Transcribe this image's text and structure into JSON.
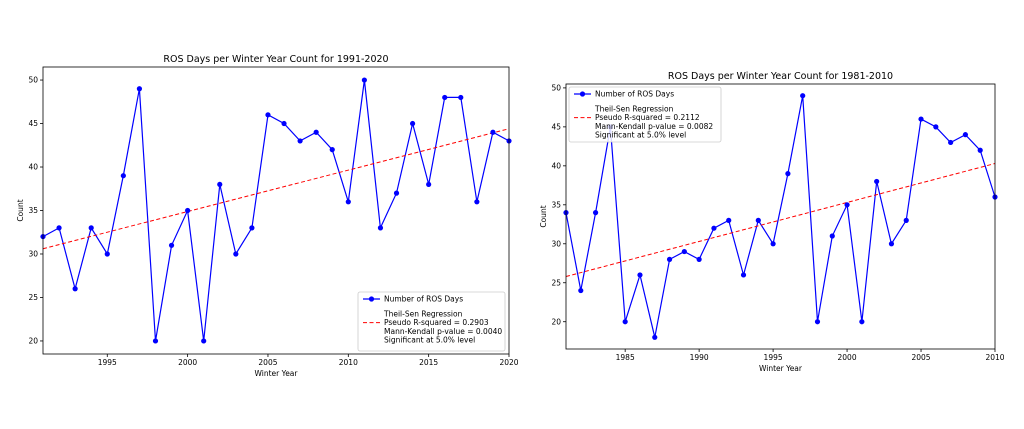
{
  "chart_data": [
    {
      "type": "line",
      "title": "ROS Days per Winter Year Count for 1991-2020",
      "xlabel": "Winter Year",
      "ylabel": "Count",
      "xlim": [
        1991,
        2020
      ],
      "ylim": [
        18.5,
        51.5
      ],
      "xticks": [
        1995,
        2000,
        2005,
        2010,
        2015,
        2020
      ],
      "yticks": [
        20,
        25,
        30,
        35,
        40,
        45,
        50
      ],
      "grid": false,
      "legend_position": "lower-right",
      "series": [
        {
          "name": "Number of ROS Days",
          "color": "#0000ff",
          "marker": "circle",
          "x": [
            1991,
            1992,
            1993,
            1994,
            1995,
            1996,
            1997,
            1998,
            1999,
            2000,
            2001,
            2002,
            2003,
            2004,
            2005,
            2006,
            2007,
            2008,
            2009,
            2010,
            2011,
            2012,
            2013,
            2014,
            2015,
            2016,
            2017,
            2018,
            2019,
            2020
          ],
          "y": [
            32,
            33,
            26,
            33,
            30,
            39,
            49,
            20,
            31,
            35,
            20,
            38,
            30,
            33,
            46,
            45,
            43,
            44,
            42,
            36,
            50,
            33,
            37,
            45,
            38,
            48,
            48,
            36,
            44,
            43
          ]
        }
      ],
      "trend": {
        "name": "Theil-Sen Regression",
        "color": "#ff0000",
        "style": "dashed",
        "x": [
          1991,
          2020
        ],
        "y": [
          30.6,
          44.4
        ]
      },
      "legend": {
        "series_label": "Number of ROS Days",
        "trend_header": "Theil-Sen Regression",
        "trend_label": "Pseudo R-squared = 0.2903",
        "pvalue_text": "Mann-Kendall p-value = 0.0040",
        "significance_text": "Significant at 5.0% level"
      }
    },
    {
      "type": "line",
      "title": "ROS Days per Winter Year Count for 1981-2010",
      "xlabel": "Winter Year",
      "ylabel": "Count",
      "xlim": [
        1981,
        2010
      ],
      "ylim": [
        16.5,
        50.5
      ],
      "xticks": [
        1985,
        1990,
        1995,
        2000,
        2005,
        2010
      ],
      "yticks": [
        20,
        25,
        30,
        35,
        40,
        45,
        50
      ],
      "grid": false,
      "legend_position": "upper-left",
      "series": [
        {
          "name": "Number of ROS Days",
          "color": "#0000ff",
          "marker": "circle",
          "x": [
            1981,
            1982,
            1983,
            1984,
            1985,
            1986,
            1987,
            1988,
            1989,
            1990,
            1991,
            1992,
            1993,
            1994,
            1995,
            1996,
            1997,
            1998,
            1999,
            2000,
            2001,
            2002,
            2003,
            2004,
            2005,
            2006,
            2007,
            2008,
            2009,
            2010
          ],
          "y": [
            34,
            24,
            34,
            45,
            20,
            26,
            18,
            28,
            29,
            28,
            32,
            33,
            26,
            33,
            30,
            39,
            49,
            20,
            31,
            35,
            20,
            38,
            30,
            33,
            46,
            45,
            43,
            44,
            42,
            36
          ]
        }
      ],
      "trend": {
        "name": "Theil-Sen Regression",
        "color": "#ff0000",
        "style": "dashed",
        "x": [
          1981,
          2010
        ],
        "y": [
          25.8,
          40.3
        ]
      },
      "legend": {
        "series_label": "Number of ROS Days",
        "trend_header": "Theil-Sen Regression",
        "trend_label": "Pseudo R-squared = 0.2112",
        "pvalue_text": "Mann-Kendall p-value = 0.0082",
        "significance_text": "Significant at 5.0% level"
      }
    }
  ]
}
